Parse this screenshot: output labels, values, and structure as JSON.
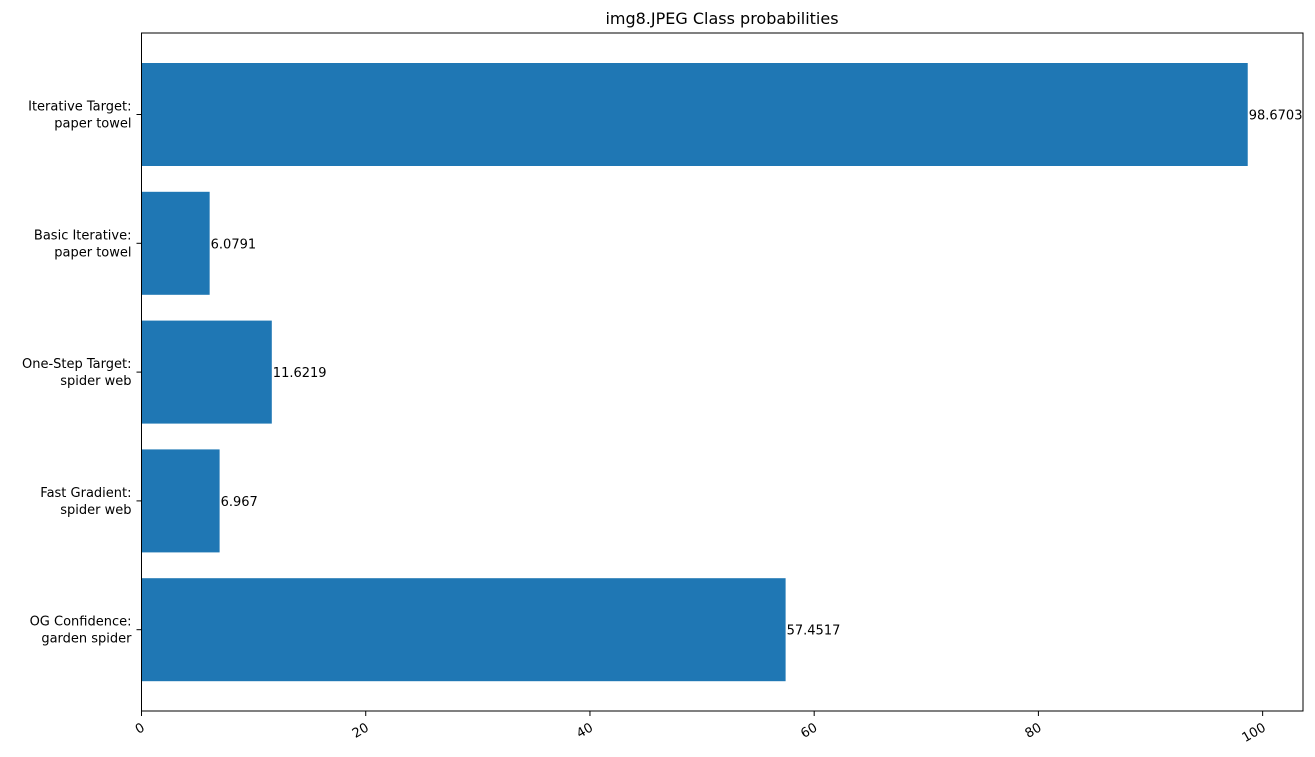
{
  "chart_data": {
    "type": "bar",
    "orientation": "horizontal",
    "title": "img8.JPEG Class probabilities",
    "xlabel": "",
    "ylabel": "",
    "xlim": [
      0,
      103.6
    ],
    "x_ticks": [
      0,
      20,
      40,
      60,
      80,
      100
    ],
    "x_tick_labels": [
      "0",
      "20",
      "40",
      "60",
      "80",
      "100"
    ],
    "x_tick_rotation": -30,
    "grid": false,
    "bar_color": "#1f77b4",
    "categories": [
      [
        "Iterative Target:",
        "paper towel"
      ],
      [
        "Basic Iterative:",
        "paper towel"
      ],
      [
        "One-Step Target:",
        "spider web"
      ],
      [
        "Fast Gradient:",
        "spider web"
      ],
      [
        "OG Confidence:",
        "garden spider"
      ]
    ],
    "values": [
      98.6703,
      6.0791,
      11.6219,
      6.967,
      57.4517
    ],
    "value_labels": [
      "98.6703",
      "6.0791",
      "11.6219",
      "6.967",
      "57.4517"
    ]
  }
}
